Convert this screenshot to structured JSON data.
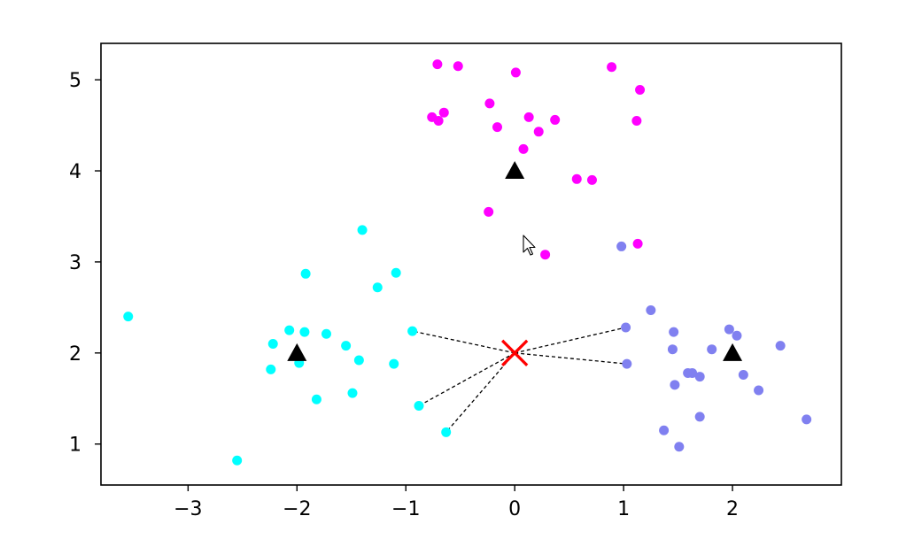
{
  "chart_data": {
    "type": "scatter",
    "xlim": [
      -3.8,
      3.0
    ],
    "ylim": [
      0.55,
      5.4
    ],
    "xticks": [
      -3,
      -2,
      -1,
      0,
      1,
      2
    ],
    "xtick_labels": [
      "−3",
      "−2",
      "−1",
      "0",
      "1",
      "2"
    ],
    "yticks": [
      1,
      2,
      3,
      4,
      5
    ],
    "ytick_labels": [
      "1",
      "2",
      "3",
      "4",
      "5"
    ],
    "grid": false,
    "series": [
      {
        "color": "#00ffff",
        "points": [
          [
            -3.55,
            2.4
          ],
          [
            -2.55,
            0.82
          ],
          [
            -2.22,
            2.1
          ],
          [
            -2.24,
            1.82
          ],
          [
            -2.07,
            2.25
          ],
          [
            -1.92,
            2.87
          ],
          [
            -1.93,
            2.23
          ],
          [
            -1.98,
            1.89
          ],
          [
            -1.82,
            1.49
          ],
          [
            -1.73,
            2.21
          ],
          [
            -1.55,
            2.08
          ],
          [
            -1.49,
            1.56
          ],
          [
            -1.43,
            1.92
          ],
          [
            -1.4,
            3.35
          ],
          [
            -1.26,
            2.72
          ],
          [
            -1.09,
            2.88
          ],
          [
            -1.11,
            1.88
          ],
          [
            -0.94,
            2.24
          ],
          [
            -0.88,
            1.42
          ],
          [
            -0.63,
            1.13
          ]
        ]
      },
      {
        "color": "#ff00ff",
        "points": [
          [
            -0.71,
            5.17
          ],
          [
            -0.52,
            5.15
          ],
          [
            0.01,
            5.08
          ],
          [
            0.89,
            5.14
          ],
          [
            1.15,
            4.89
          ],
          [
            -0.23,
            4.74
          ],
          [
            -0.65,
            4.64
          ],
          [
            -0.76,
            4.59
          ],
          [
            -0.7,
            4.55
          ],
          [
            0.13,
            4.59
          ],
          [
            0.37,
            4.56
          ],
          [
            1.12,
            4.55
          ],
          [
            -0.16,
            4.48
          ],
          [
            0.22,
            4.43
          ],
          [
            0.08,
            4.24
          ],
          [
            0.57,
            3.91
          ],
          [
            0.71,
            3.9
          ],
          [
            -0.24,
            3.55
          ],
          [
            1.13,
            3.2
          ],
          [
            0.28,
            3.08
          ]
        ]
      },
      {
        "color": "#8080f0",
        "points": [
          [
            0.98,
            3.17
          ],
          [
            1.25,
            2.47
          ],
          [
            1.02,
            2.28
          ],
          [
            1.46,
            2.23
          ],
          [
            1.97,
            2.26
          ],
          [
            2.04,
            2.19
          ],
          [
            1.45,
            2.04
          ],
          [
            1.81,
            2.04
          ],
          [
            2.44,
            2.08
          ],
          [
            1.03,
            1.88
          ],
          [
            1.59,
            1.78
          ],
          [
            1.63,
            1.78
          ],
          [
            1.7,
            1.74
          ],
          [
            2.1,
            1.76
          ],
          [
            1.47,
            1.65
          ],
          [
            2.24,
            1.59
          ],
          [
            1.7,
            1.3
          ],
          [
            2.68,
            1.27
          ],
          [
            1.37,
            1.15
          ],
          [
            1.51,
            0.97
          ]
        ]
      }
    ],
    "centroids": {
      "color": "#000000",
      "marker": "triangle",
      "points": [
        [
          -2,
          2
        ],
        [
          0,
          4
        ],
        [
          2,
          2
        ]
      ]
    },
    "query_point": {
      "color": "#ff0000",
      "marker": "x",
      "point": [
        0,
        2
      ]
    },
    "neighbor_lines": {
      "color": "#000000",
      "style": "dashed",
      "targets": [
        [
          -0.94,
          2.24
        ],
        [
          -0.88,
          1.42
        ],
        [
          -0.63,
          1.13
        ],
        [
          1.02,
          2.28
        ],
        [
          1.03,
          1.88
        ]
      ]
    }
  }
}
